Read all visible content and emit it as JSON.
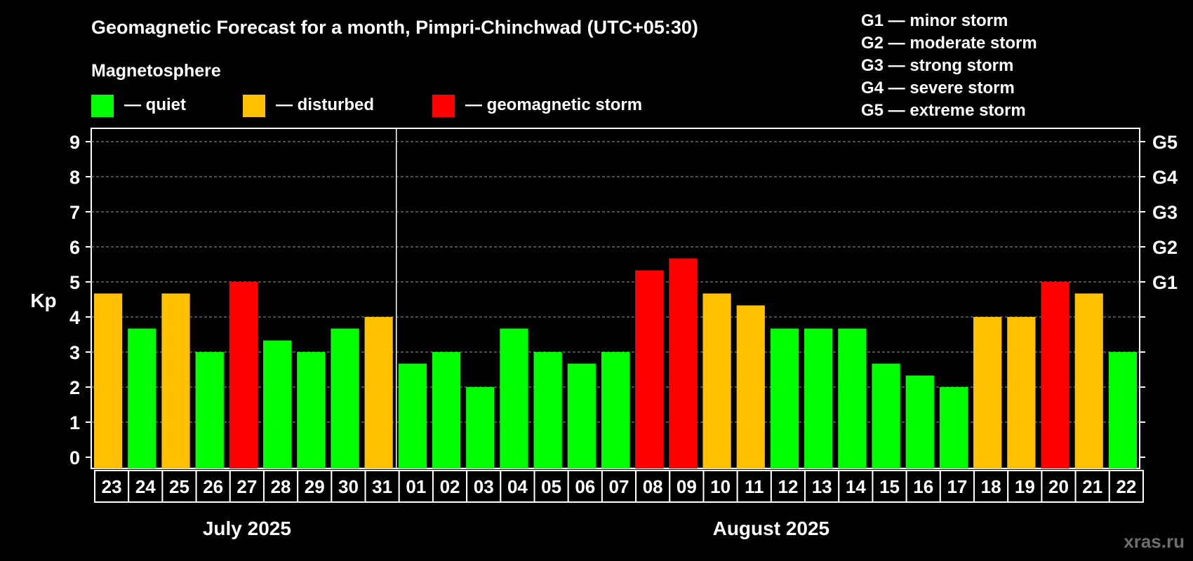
{
  "chart_data": {
    "type": "bar",
    "title": "Geomagnetic Forecast for a month, Pimpri-Chinchwad (UTC+05:30)",
    "legend": {
      "heading": "Magnetosphere",
      "items": [
        {
          "key": "quiet",
          "label": "— quiet",
          "color": "#00ff00"
        },
        {
          "key": "disturbed",
          "label": "— disturbed",
          "color": "#ffc000"
        },
        {
          "key": "storm",
          "label": "— geomagnetic storm",
          "color": "#ff0000"
        }
      ]
    },
    "storm_scale": [
      "G1 — minor storm",
      "G2 — moderate storm",
      "G3 — strong storm",
      "G4 — severe storm",
      "G5 — extreme storm"
    ],
    "ylabel": "Kp",
    "ylim": [
      0,
      9
    ],
    "yticks": [
      0,
      1,
      2,
      3,
      4,
      5,
      6,
      7,
      8,
      9
    ],
    "right_ticks": [
      {
        "value": 5,
        "label": "G1"
      },
      {
        "value": 6,
        "label": "G2"
      },
      {
        "value": 7,
        "label": "G3"
      },
      {
        "value": 8,
        "label": "G4"
      },
      {
        "value": 9,
        "label": "G5"
      }
    ],
    "grid": "dashed horizontal",
    "categories": [
      "23",
      "24",
      "25",
      "26",
      "27",
      "28",
      "29",
      "30",
      "31",
      "01",
      "02",
      "03",
      "04",
      "05",
      "06",
      "07",
      "08",
      "09",
      "10",
      "11",
      "12",
      "13",
      "14",
      "15",
      "16",
      "17",
      "18",
      "19",
      "20",
      "21",
      "22"
    ],
    "values": [
      4.67,
      3.67,
      4.67,
      3.0,
      5.0,
      3.33,
      3.0,
      3.67,
      4.0,
      2.67,
      3.0,
      2.0,
      3.67,
      3.0,
      2.67,
      3.0,
      5.33,
      5.67,
      4.67,
      4.33,
      3.67,
      3.67,
      3.67,
      2.67,
      2.33,
      2.0,
      4.0,
      4.0,
      5.0,
      4.67,
      3.0
    ],
    "status": [
      "disturbed",
      "quiet",
      "disturbed",
      "quiet",
      "storm",
      "quiet",
      "quiet",
      "quiet",
      "disturbed",
      "quiet",
      "quiet",
      "quiet",
      "quiet",
      "quiet",
      "quiet",
      "quiet",
      "storm",
      "storm",
      "disturbed",
      "disturbed",
      "quiet",
      "quiet",
      "quiet",
      "quiet",
      "quiet",
      "quiet",
      "disturbed",
      "disturbed",
      "storm",
      "disturbed",
      "quiet"
    ],
    "months": [
      {
        "label": "July 2025",
        "days": 9
      },
      {
        "label": "August 2025",
        "days": 22
      }
    ]
  },
  "watermark": "xras.ru"
}
